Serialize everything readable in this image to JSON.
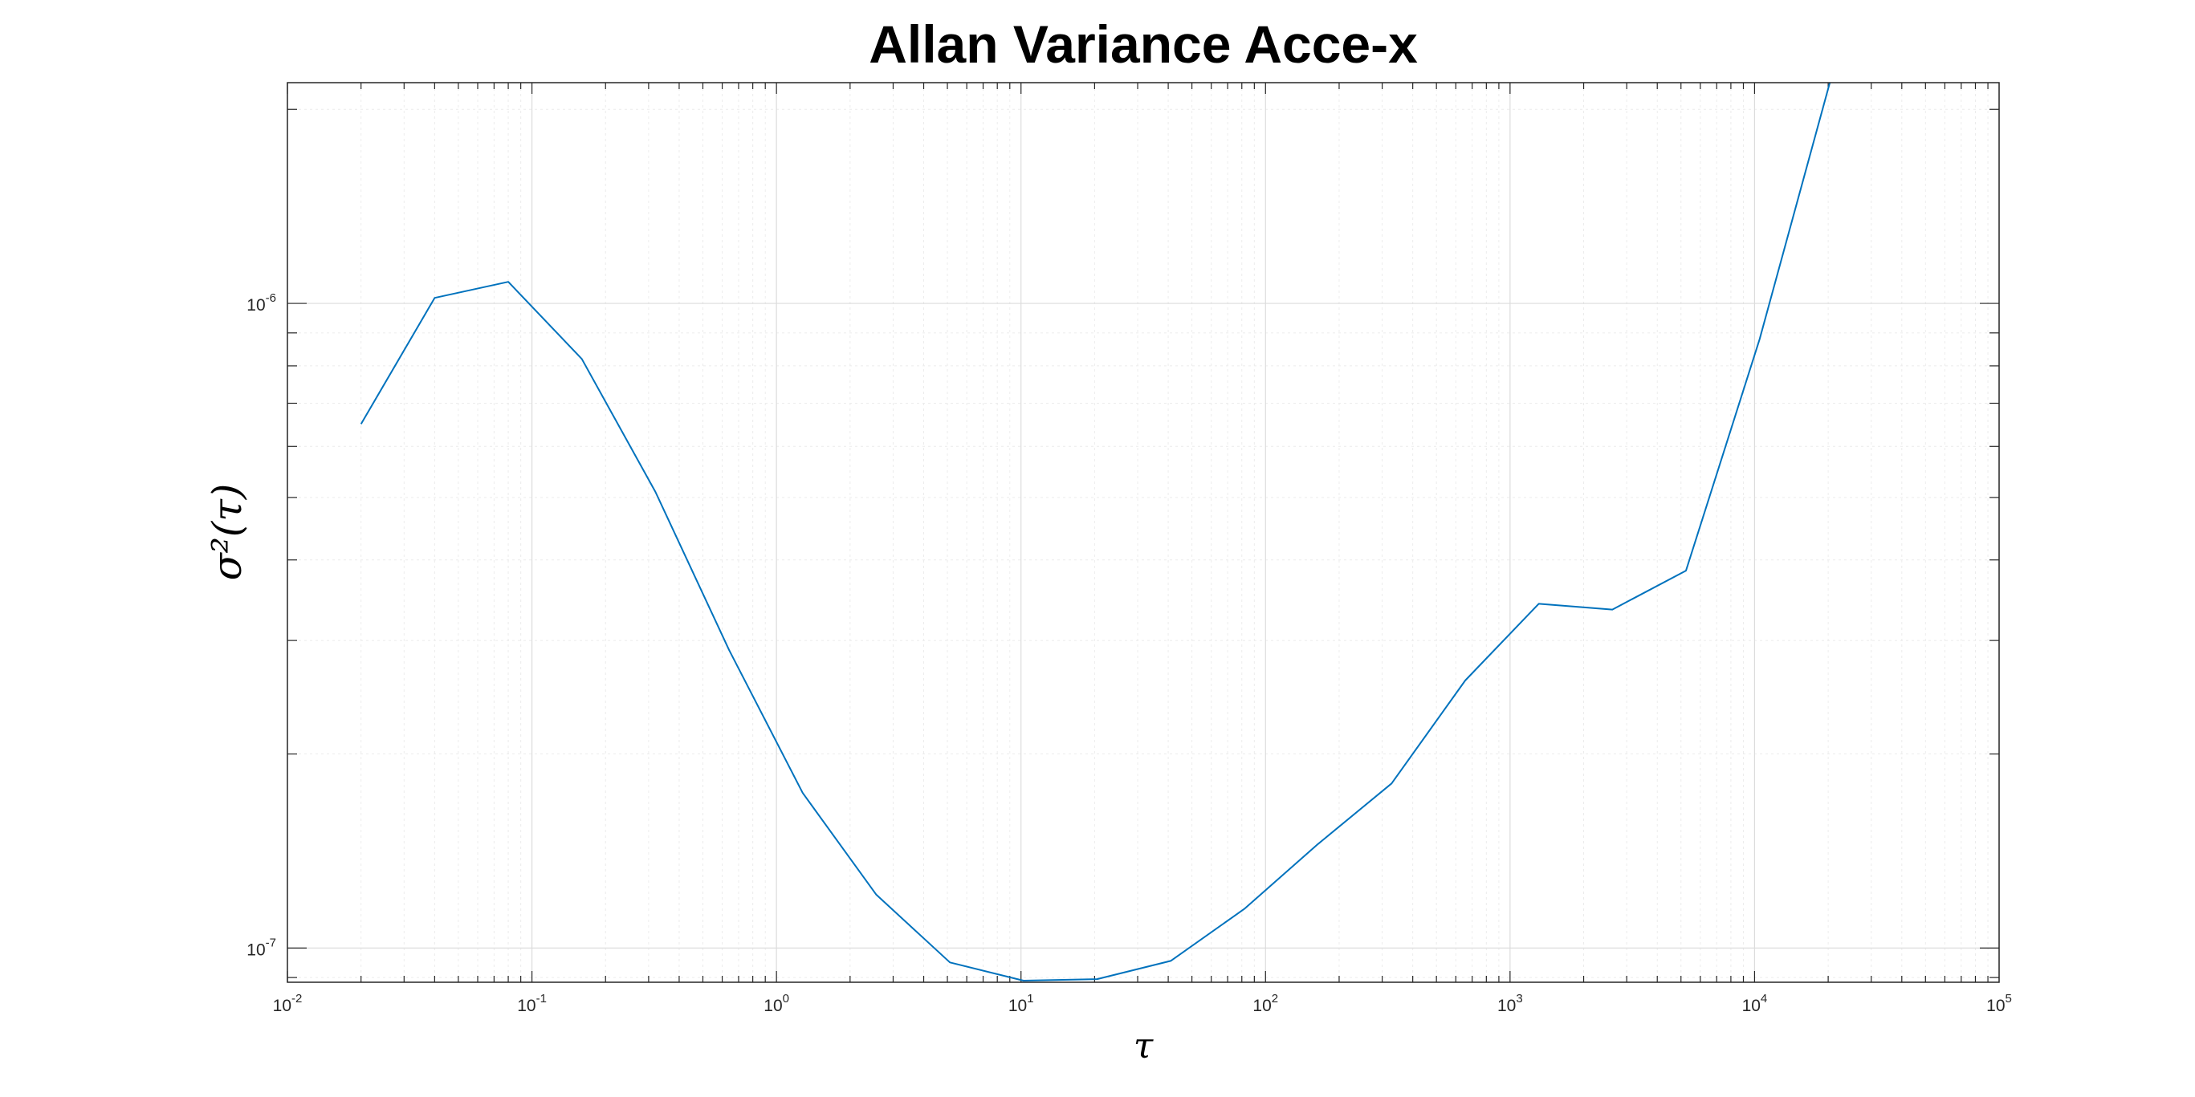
{
  "chart_data": {
    "type": "line",
    "title": "Allan Variance Acce-x",
    "xlabel": "τ",
    "ylabel": "σ²(τ)",
    "x_scale": "log",
    "y_scale": "log",
    "xlim": [
      0.01,
      100000
    ],
    "ylim": [
      8.85e-08,
      2.2e-06
    ],
    "grid": "major-and-minor",
    "x_ticks": [
      {
        "value": 0.01,
        "base": "10",
        "exp": "-2"
      },
      {
        "value": 0.1,
        "base": "10",
        "exp": "-1"
      },
      {
        "value": 1,
        "base": "10",
        "exp": "0"
      },
      {
        "value": 10,
        "base": "10",
        "exp": "1"
      },
      {
        "value": 100,
        "base": "10",
        "exp": "2"
      },
      {
        "value": 1000,
        "base": "10",
        "exp": "3"
      },
      {
        "value": 10000,
        "base": "10",
        "exp": "4"
      },
      {
        "value": 100000,
        "base": "10",
        "exp": "5"
      }
    ],
    "y_ticks": [
      {
        "value": 1e-07,
        "base": "10",
        "exp": "-7"
      },
      {
        "value": 1e-06,
        "base": "10",
        "exp": "-6"
      }
    ],
    "series": [
      {
        "color": "#0072BD",
        "x": [
          0.02,
          0.04,
          0.08,
          0.16,
          0.32,
          0.64,
          1.28,
          2.56,
          5.12,
          10.24,
          20.48,
          40.96,
          81.92,
          163.84,
          327.68,
          655.36,
          1310.72,
          2621.44,
          5242.88,
          10485.76,
          20971.52
        ],
        "y": [
          6.5e-07,
          1.02e-06,
          1.08e-06,
          8.2e-07,
          5.1e-07,
          2.9e-07,
          1.74e-07,
          1.21e-07,
          9.5e-08,
          8.9e-08,
          8.95e-08,
          9.55e-08,
          1.15e-07,
          1.45e-07,
          1.8e-07,
          2.6e-07,
          3.42e-07,
          3.35e-07,
          3.85e-07,
          8.8e-07,
          2.3e-06
        ]
      }
    ]
  }
}
